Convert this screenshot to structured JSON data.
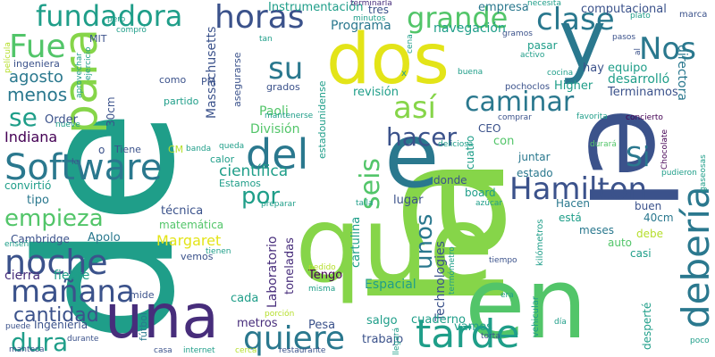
{
  "palette": {
    "yellow": "#e3e418",
    "lime": "#86d549",
    "green": "#52c569",
    "teal": "#1f9e89",
    "cyan": "#2a788e",
    "blue": "#3b528b",
    "indigo": "#472d7b",
    "purple": "#440154",
    "light": "#b5de2b"
  },
  "words": [
    {
      "text": "de",
      "color": "teal"
    },
    {
      "text": "la",
      "color": "lime"
    },
    {
      "text": "que",
      "color": "lime"
    },
    {
      "text": "en",
      "color": "green"
    },
    {
      "text": "dos",
      "color": "yellow"
    },
    {
      "text": "y",
      "color": "cyan"
    },
    {
      "text": "el",
      "color": "blue"
    },
    {
      "text": "una",
      "color": "indigo"
    },
    {
      "text": "e",
      "color": "cyan"
    },
    {
      "text": "Software",
      "color": "cyan"
    },
    {
      "text": "del",
      "color": "cyan"
    },
    {
      "text": "para",
      "color": "lime"
    },
    {
      "text": "noche",
      "color": "blue"
    },
    {
      "text": "tarde",
      "color": "teal"
    },
    {
      "text": "quiere",
      "color": "cyan"
    },
    {
      "text": "debería",
      "color": "cyan"
    },
    {
      "text": "mañana",
      "color": "blue"
    },
    {
      "text": "Hamilton",
      "color": "blue"
    },
    {
      "text": "horas",
      "color": "blue"
    },
    {
      "text": "fundadora",
      "color": "teal"
    },
    {
      "text": "grande",
      "color": "green"
    },
    {
      "text": "clase",
      "color": "cyan"
    },
    {
      "text": "Fue",
      "color": "green"
    },
    {
      "text": "Nos",
      "color": "cyan"
    },
    {
      "text": "su",
      "color": "cyan"
    },
    {
      "text": "así",
      "color": "lime"
    },
    {
      "text": "caminar",
      "color": "cyan"
    },
    {
      "text": "hacer",
      "color": "blue"
    },
    {
      "text": "seis",
      "color": "green"
    },
    {
      "text": "Si",
      "color": "cyan"
    },
    {
      "text": "se",
      "color": "teal"
    },
    {
      "text": "empieza",
      "color": "green"
    },
    {
      "text": "dura",
      "color": "teal"
    },
    {
      "text": "cantidad",
      "color": "blue"
    },
    {
      "text": "unos",
      "color": "cyan"
    },
    {
      "text": "por",
      "color": "teal"
    },
    {
      "text": "menos",
      "color": "cyan"
    },
    {
      "text": "agosto",
      "color": "cyan"
    },
    {
      "text": "Indiana",
      "color": "purple"
    },
    {
      "text": "científica",
      "color": "teal"
    },
    {
      "text": "Margaret",
      "color": "yellow"
    },
    {
      "text": "Programa",
      "color": "cyan"
    },
    {
      "text": "Instrumentación",
      "color": "teal"
    },
    {
      "text": "navegación",
      "color": "teal"
    },
    {
      "text": "computacional",
      "color": "blue"
    },
    {
      "text": "empresa",
      "color": "cyan"
    },
    {
      "text": "desarrolló",
      "color": "teal"
    },
    {
      "text": "directora",
      "color": "cyan"
    },
    {
      "text": "Higher",
      "color": "teal"
    },
    {
      "text": "Terminamos",
      "color": "blue"
    },
    {
      "text": "Order",
      "color": "blue"
    },
    {
      "text": "Paoli",
      "color": "green"
    },
    {
      "text": "División",
      "color": "green"
    },
    {
      "text": "revisión",
      "color": "teal"
    },
    {
      "text": "Massachusetts",
      "color": "blue"
    },
    {
      "text": "Laboratorio",
      "color": "indigo"
    },
    {
      "text": "Technologies",
      "color": "blue"
    },
    {
      "text": "Espacial",
      "color": "teal"
    },
    {
      "text": "Cambridge",
      "color": "blue"
    },
    {
      "text": "Ingeniería",
      "color": "blue"
    },
    {
      "text": "Apolo",
      "color": "cyan"
    },
    {
      "text": "cierra",
      "color": "indigo"
    },
    {
      "text": "fiebre",
      "color": "teal"
    },
    {
      "text": "vamos",
      "color": "teal"
    },
    {
      "text": "salgo",
      "color": "teal"
    },
    {
      "text": "cuaderno",
      "color": "teal"
    },
    {
      "text": "trabajo",
      "color": "blue"
    },
    {
      "text": "Pesa",
      "color": "blue"
    },
    {
      "text": "metros",
      "color": "indigo"
    },
    {
      "text": "cada",
      "color": "teal"
    },
    {
      "text": "Tengo",
      "color": "purple"
    },
    {
      "text": "toneladas",
      "color": "indigo"
    },
    {
      "text": "cartulina",
      "color": "teal"
    },
    {
      "text": "lugar",
      "color": "blue"
    },
    {
      "text": "estado",
      "color": "cyan"
    },
    {
      "text": "juntar",
      "color": "cyan"
    },
    {
      "text": "cuatro",
      "color": "teal"
    },
    {
      "text": "con",
      "color": "green"
    },
    {
      "text": "CEO",
      "color": "blue"
    },
    {
      "text": "board",
      "color": "teal"
    },
    {
      "text": "donde",
      "color": "blue"
    },
    {
      "text": "Hacen",
      "color": "cyan"
    },
    {
      "text": "está",
      "color": "teal"
    },
    {
      "text": "meses",
      "color": "cyan"
    },
    {
      "text": "auto",
      "color": "green"
    },
    {
      "text": "casi",
      "color": "teal"
    },
    {
      "text": "buen",
      "color": "blue"
    },
    {
      "text": "40cm",
      "color": "cyan"
    },
    {
      "text": "30cm",
      "color": "blue"
    },
    {
      "text": "debe",
      "color": "light"
    },
    {
      "text": "equipo",
      "color": "teal"
    },
    {
      "text": "hay",
      "color": "blue"
    },
    {
      "text": "pasar",
      "color": "teal"
    },
    {
      "text": "tres",
      "color": "blue"
    },
    {
      "text": "minutos",
      "color": "teal"
    },
    {
      "text": "terminarla",
      "color": "indigo"
    },
    {
      "text": "necesita",
      "color": "teal"
    },
    {
      "text": "plato",
      "color": "teal"
    },
    {
      "text": "marca",
      "color": "blue"
    },
    {
      "text": "pasos",
      "color": "blue"
    },
    {
      "text": "activo",
      "color": "teal"
    },
    {
      "text": "gramos",
      "color": "blue"
    },
    {
      "text": "cocina",
      "color": "teal"
    },
    {
      "text": "pochoclos",
      "color": "blue"
    },
    {
      "text": "buena",
      "color": "teal"
    },
    {
      "text": "comprar",
      "color": "blue"
    },
    {
      "text": "concierto",
      "color": "purple"
    },
    {
      "text": "favorita",
      "color": "teal"
    },
    {
      "text": "deliciosa",
      "color": "teal"
    },
    {
      "text": "durará",
      "color": "green"
    },
    {
      "text": "Chocolate",
      "color": "purple"
    },
    {
      "text": "gaseosas",
      "color": "teal"
    },
    {
      "text": "pudieron",
      "color": "teal"
    },
    {
      "text": "tiempo",
      "color": "blue"
    },
    {
      "text": "termómetro",
      "color": "teal"
    },
    {
      "text": "kilómetros",
      "color": "teal"
    },
    {
      "text": "vehicular",
      "color": "teal"
    },
    {
      "text": "desperté",
      "color": "teal"
    },
    {
      "text": "poco",
      "color": "teal"
    },
    {
      "text": "torta",
      "color": "blue"
    },
    {
      "text": "día",
      "color": "teal"
    },
    {
      "text": "era",
      "color": "teal"
    },
    {
      "text": "llegará",
      "color": "teal"
    },
    {
      "text": "restaurante",
      "color": "blue"
    },
    {
      "text": "internet",
      "color": "teal"
    },
    {
      "text": "casa",
      "color": "blue"
    },
    {
      "text": "cerca",
      "color": "light"
    },
    {
      "text": "fútbol",
      "color": "cyan"
    },
    {
      "text": "misma",
      "color": "teal"
    },
    {
      "text": "pedido",
      "color": "light"
    },
    {
      "text": "porción",
      "color": "light"
    },
    {
      "text": "mide",
      "color": "blue"
    },
    {
      "text": "durante",
      "color": "blue"
    },
    {
      "text": "manteca",
      "color": "blue"
    },
    {
      "text": "puede",
      "color": "blue"
    },
    {
      "text": "tienen",
      "color": "teal"
    },
    {
      "text": "enseñar",
      "color": "teal"
    },
    {
      "text": "tipo",
      "color": "cyan"
    },
    {
      "text": "convirtió",
      "color": "teal"
    },
    {
      "text": "Estamos",
      "color": "teal"
    },
    {
      "text": "técnica",
      "color": "blue"
    },
    {
      "text": "matemática",
      "color": "green"
    },
    {
      "text": "vemos",
      "color": "blue"
    },
    {
      "text": "calor",
      "color": "teal"
    },
    {
      "text": "banda",
      "color": "teal"
    },
    {
      "text": "CM",
      "color": "light"
    },
    {
      "text": "queda",
      "color": "teal"
    },
    {
      "text": "preparar",
      "color": "teal"
    },
    {
      "text": "talla",
      "color": "teal"
    },
    {
      "text": "azúcar",
      "color": "teal"
    },
    {
      "text": "Tiene",
      "color": "blue"
    },
    {
      "text": "o",
      "color": "blue"
    },
    {
      "text": "le",
      "color": "blue"
    },
    {
      "text": "nueve",
      "color": "teal"
    },
    {
      "text": "ingeniera",
      "color": "blue"
    },
    {
      "text": "MIT",
      "color": "blue"
    },
    {
      "text": "compró",
      "color": "teal"
    },
    {
      "text": "ejercicio",
      "color": "teal"
    },
    {
      "text": "aprovechar",
      "color": "teal"
    },
    {
      "text": "película",
      "color": "light"
    },
    {
      "text": "pero",
      "color": "teal"
    },
    {
      "text": "PM",
      "color": "blue"
    },
    {
      "text": "partido",
      "color": "teal"
    },
    {
      "text": "como",
      "color": "blue"
    },
    {
      "text": "asegurarse",
      "color": "blue"
    },
    {
      "text": "grados",
      "color": "blue"
    },
    {
      "text": "mantenerse",
      "color": "teal"
    },
    {
      "text": "estadounidense",
      "color": "teal"
    },
    {
      "text": "tan",
      "color": "teal"
    },
    {
      "text": "cena",
      "color": "teal"
    },
    {
      "text": "al",
      "color": "blue"
    },
    {
      "text": "x",
      "color": "teal"
    }
  ]
}
